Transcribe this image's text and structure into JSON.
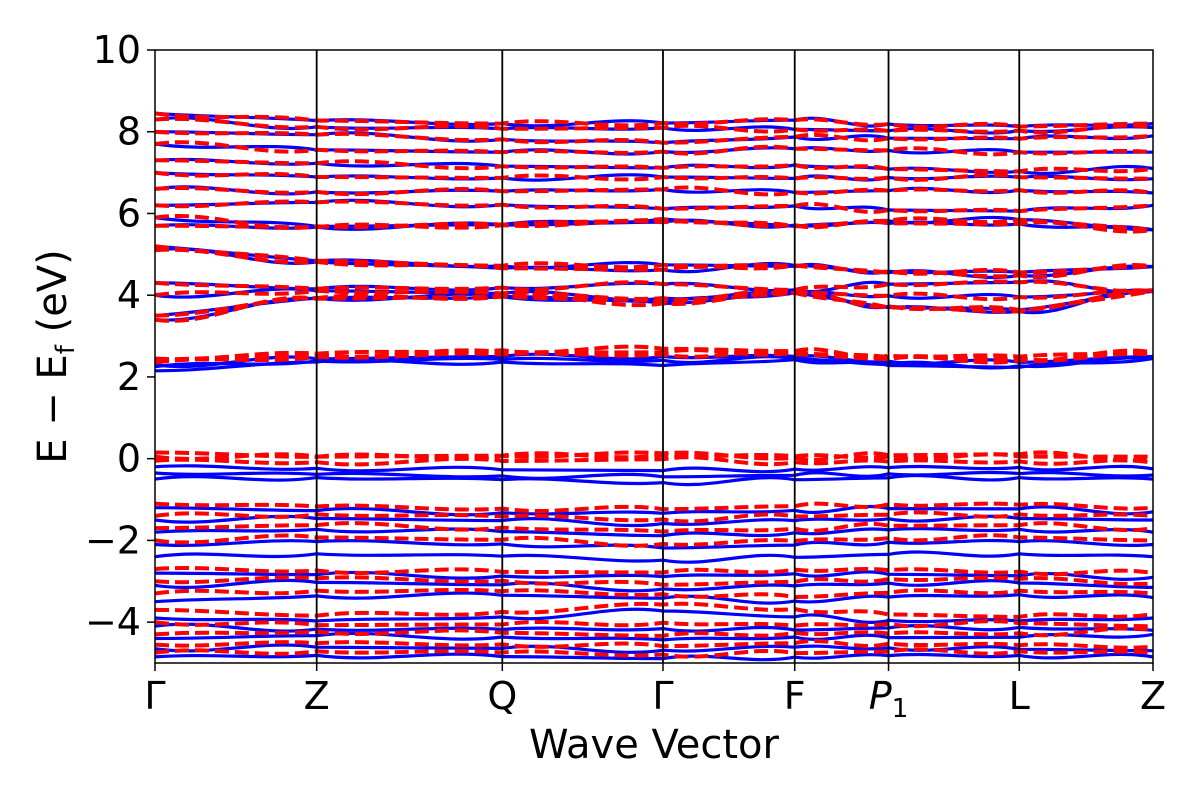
{
  "chart_data": {
    "type": "line",
    "title": "",
    "xlabel": "Wave Vector",
    "ylabel": "E − E_f (eV)",
    "ylabel_main": "E − E",
    "ylabel_sub": "f",
    "ylabel_unit": " (eV)",
    "ylim": [
      -5,
      10
    ],
    "yticks": [
      -4,
      -2,
      0,
      2,
      4,
      6,
      8,
      10
    ],
    "ytick_labels": [
      "−4",
      "−2",
      "0",
      "2",
      "4",
      "6",
      "8",
      "10"
    ],
    "x_labels": [
      "Γ",
      "Z",
      "Q",
      "Γ",
      "F",
      "P1",
      "L",
      "Z"
    ],
    "x_label_positions": [
      0.0,
      0.162,
      0.348,
      0.509,
      0.641,
      0.735,
      0.866,
      1.0
    ],
    "vertical_lines_at": [
      0.162,
      0.348,
      0.509,
      0.641,
      0.735,
      0.866
    ],
    "grid": false,
    "legend": "none",
    "colors": {
      "solid": "#0000ff",
      "dashed": "#ff0000",
      "axes": "#000000"
    },
    "series": [
      {
        "style": "solid",
        "color": "#0000ff",
        "bands": [
          [
            8.45,
            8.2,
            8.2,
            8.3,
            8.1,
            8.2
          ],
          [
            8.3,
            8.05,
            8.1,
            8.05,
            8.0,
            8.1
          ],
          [
            8.0,
            7.9,
            7.7,
            7.9,
            7.8,
            7.9
          ],
          [
            7.7,
            7.5,
            7.5,
            7.6,
            7.5,
            7.5
          ],
          [
            7.3,
            7.2,
            7.1,
            7.2,
            7.0,
            7.1
          ],
          [
            7.0,
            6.85,
            6.9,
            6.85,
            6.9,
            6.85
          ],
          [
            6.6,
            6.5,
            6.6,
            6.5,
            6.6,
            6.5
          ],
          [
            6.2,
            6.3,
            6.1,
            6.2,
            6.0,
            6.2
          ],
          [
            5.9,
            5.6,
            5.9,
            5.65,
            5.95,
            5.6
          ],
          [
            5.7,
            5.65,
            5.8,
            5.7,
            5.8,
            5.6
          ],
          [
            5.2,
            4.7,
            4.75,
            4.7,
            4.5,
            4.7
          ],
          [
            5.1,
            4.7,
            4.6,
            4.75,
            4.4,
            4.7
          ],
          [
            4.3,
            4.1,
            4.3,
            4.1,
            4.4,
            4.1
          ],
          [
            4.0,
            4.15,
            3.9,
            4.1,
            3.9,
            4.1
          ],
          [
            3.5,
            4.1,
            3.8,
            4.1,
            3.4,
            4.1
          ],
          [
            3.4,
            4.12,
            3.75,
            4.1,
            3.45,
            4.12
          ],
          [
            2.25,
            2.45,
            2.4,
            2.45,
            2.2,
            2.45
          ],
          [
            2.15,
            2.45,
            2.25,
            2.45,
            2.15,
            2.45
          ],
          [
            2.3,
            2.5,
            2.5,
            2.5,
            2.3,
            2.5
          ],
          [
            -0.2,
            -0.25,
            -0.3,
            -0.25,
            -0.2,
            -0.25
          ],
          [
            -0.35,
            -0.4,
            -0.45,
            -0.4,
            -0.35,
            -0.4
          ],
          [
            -0.5,
            -0.45,
            -0.6,
            -0.5,
            -0.45,
            -0.5
          ],
          [
            -1.2,
            -1.3,
            -1.35,
            -1.25,
            -1.2,
            -1.3
          ],
          [
            -1.5,
            -1.45,
            -1.6,
            -1.5,
            -1.45,
            -1.5
          ],
          [
            -1.8,
            -1.7,
            -1.9,
            -1.8,
            -1.7,
            -1.8
          ],
          [
            -2.1,
            -2.0,
            -2.2,
            -2.1,
            -2.0,
            -2.1
          ],
          [
            -2.4,
            -2.3,
            -2.5,
            -2.4,
            -2.3,
            -2.4
          ],
          [
            -2.8,
            -2.85,
            -2.9,
            -2.8,
            -2.85,
            -2.9
          ],
          [
            -3.1,
            -3.0,
            -3.2,
            -3.1,
            -3.0,
            -3.15
          ],
          [
            -3.5,
            -3.3,
            -3.4,
            -3.5,
            -3.3,
            -3.4
          ],
          [
            -3.9,
            -4.0,
            -3.7,
            -3.9,
            -4.0,
            -3.9
          ],
          [
            -4.1,
            -4.2,
            -4.15,
            -4.2,
            -4.1,
            -4.2
          ],
          [
            -4.4,
            -4.3,
            -4.45,
            -4.35,
            -4.4,
            -4.3
          ],
          [
            -4.65,
            -4.6,
            -4.7,
            -4.6,
            -4.65,
            -4.7
          ],
          [
            -4.85,
            -4.8,
            -4.9,
            -4.85,
            -4.8,
            -4.85
          ]
        ]
      },
      {
        "style": "dashed",
        "color": "#ff0000",
        "bands": [
          [
            8.45,
            8.2,
            8.2,
            8.3,
            8.1,
            8.2
          ],
          [
            8.3,
            8.05,
            8.1,
            8.05,
            8.0,
            8.1
          ],
          [
            8.0,
            7.9,
            7.7,
            7.9,
            7.8,
            7.9
          ],
          [
            7.7,
            7.5,
            7.5,
            7.6,
            7.5,
            7.5
          ],
          [
            7.3,
            7.2,
            7.1,
            7.2,
            7.0,
            7.1
          ],
          [
            7.0,
            6.85,
            6.9,
            6.85,
            6.9,
            6.85
          ],
          [
            6.6,
            6.5,
            6.6,
            6.5,
            6.6,
            6.5
          ],
          [
            6.2,
            6.3,
            6.1,
            6.2,
            6.0,
            6.2
          ],
          [
            5.9,
            5.6,
            5.9,
            5.65,
            5.95,
            5.6
          ],
          [
            5.7,
            5.65,
            5.8,
            5.7,
            5.8,
            5.6
          ],
          [
            5.2,
            4.7,
            4.75,
            4.7,
            4.5,
            4.7
          ],
          [
            5.1,
            4.7,
            4.6,
            4.75,
            4.4,
            4.7
          ],
          [
            4.3,
            4.1,
            4.3,
            4.1,
            4.4,
            4.1
          ],
          [
            4.0,
            4.15,
            3.9,
            4.1,
            3.9,
            4.1
          ],
          [
            3.5,
            4.1,
            3.8,
            4.1,
            3.4,
            4.1
          ],
          [
            3.4,
            4.12,
            3.75,
            4.1,
            3.45,
            4.12
          ],
          [
            2.4,
            2.6,
            2.6,
            2.6,
            2.4,
            2.6
          ],
          [
            2.45,
            2.62,
            2.7,
            2.62,
            2.45,
            2.62
          ],
          [
            2.35,
            2.55,
            2.55,
            2.55,
            2.35,
            2.55
          ],
          [
            0.15,
            0.0,
            0.15,
            0.0,
            0.15,
            0.0
          ],
          [
            0.05,
            0.05,
            0.1,
            0.05,
            0.05,
            0.05
          ],
          [
            -0.05,
            -0.1,
            0.0,
            -0.1,
            -0.05,
            -0.1
          ],
          [
            -1.1,
            -1.2,
            -1.25,
            -1.15,
            -1.1,
            -1.2
          ],
          [
            -1.4,
            -1.35,
            -1.5,
            -1.4,
            -1.35,
            -1.4
          ],
          [
            -1.7,
            -1.6,
            -1.8,
            -1.7,
            -1.6,
            -1.7
          ],
          [
            -2.0,
            -1.9,
            -2.1,
            -2.0,
            -1.9,
            -2.0
          ],
          [
            -2.7,
            -2.75,
            -2.8,
            -2.7,
            -2.75,
            -2.8
          ],
          [
            -3.0,
            -2.9,
            -3.1,
            -3.0,
            -2.9,
            -3.05
          ],
          [
            -3.3,
            -3.2,
            -3.3,
            -3.4,
            -3.2,
            -3.3
          ],
          [
            -3.7,
            -3.9,
            -3.55,
            -3.7,
            -3.9,
            -3.8
          ],
          [
            -4.0,
            -4.1,
            -4.0,
            -4.1,
            -4.0,
            -4.1
          ],
          [
            -4.3,
            -4.2,
            -4.35,
            -4.25,
            -4.3,
            -4.2
          ],
          [
            -4.55,
            -4.5,
            -4.6,
            -4.5,
            -4.55,
            -4.6
          ],
          [
            -4.75,
            -4.7,
            -4.8,
            -4.75,
            -4.7,
            -4.75
          ]
        ]
      }
    ]
  }
}
